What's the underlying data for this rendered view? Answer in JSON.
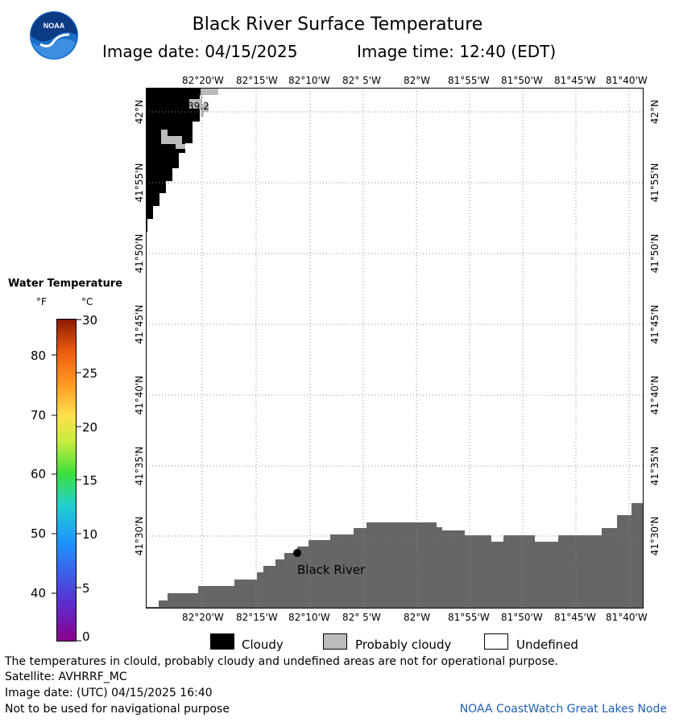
{
  "header": {
    "title": "Black River Surface Temperature",
    "image_date": "Image date: 04/15/2025",
    "image_time": "Image time: 12:40 (EDT)"
  },
  "logo": {
    "text": "NOAA",
    "colors": {
      "outer": "#1a6fc9",
      "inner": "#0c3b86"
    }
  },
  "map": {
    "lon_labels": [
      "82°20'W",
      "82°15'W",
      "82°10'W",
      "82° 5'W",
      "82°W",
      "81°55'W",
      "81°50'W",
      "81°45'W",
      "81°40'W"
    ],
    "lat_labels": [
      "42°N",
      "41°55'N",
      "41°50'N",
      "41°45'N",
      "41°40'N",
      "41°35'N",
      "41°30'N"
    ],
    "location_label": "Black River",
    "temp_reading": "39.2",
    "colors": {
      "land": "#666666",
      "cloudy": "#000000",
      "probably_cloudy": "#bbbbbb",
      "water": "#ffffff",
      "grid": "#888888"
    }
  },
  "colorbar": {
    "title": "Water Temperature",
    "unit_f": "°F",
    "unit_c": "°C",
    "f_labels": [
      "80",
      "70",
      "60",
      "50",
      "40"
    ],
    "c_labels": [
      "30",
      "25",
      "20",
      "15",
      "10",
      "5",
      "0"
    ]
  },
  "legend": {
    "cloudy": "Cloudy",
    "probably_cloudy": "Probably cloudy",
    "undefined": "Undefined"
  },
  "footer": {
    "disclaimer": "The temperatures in clould, probably cloudy and undefined areas are not for operational purpose.",
    "satellite": "Satellite: AVHRRF_MC",
    "utc_date": "Image date: (UTC) 04/15/2025  16:40",
    "nav_warning": "Not to be used for navigational purpose",
    "credit": "NOAA CoastWatch Great Lakes Node"
  }
}
